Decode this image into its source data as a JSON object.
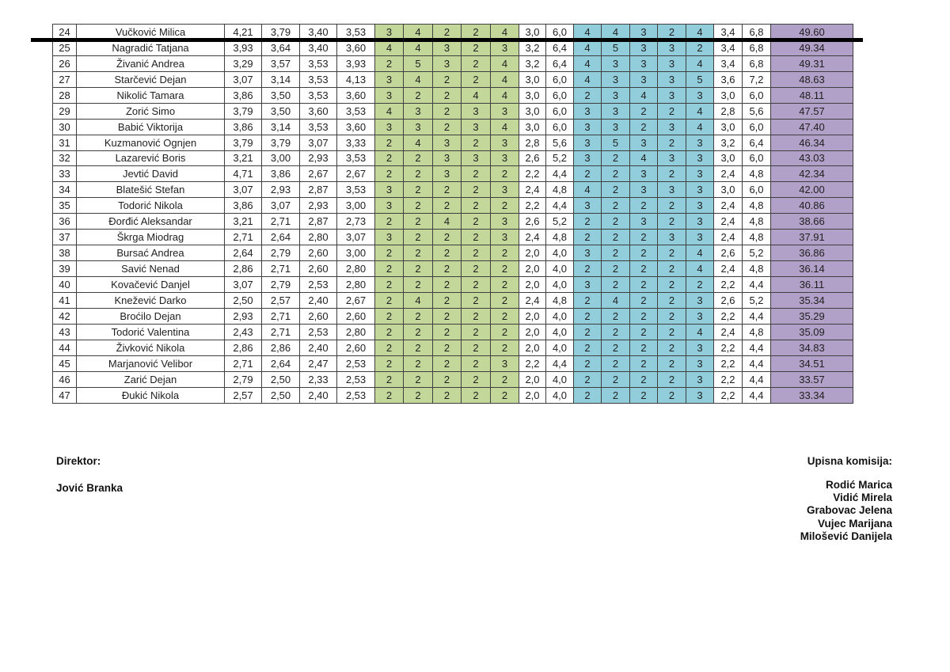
{
  "colors": {
    "green": "#C4D79B",
    "blue": "#92CDDC",
    "purple": "#B1A0C7"
  },
  "table": {
    "rows": [
      {
        "num": "24",
        "name": "Vučković Milica",
        "avg": [
          "4,21",
          "3,79",
          "3,40",
          "3,53"
        ],
        "pts1": [
          "3",
          "4",
          "2",
          "2",
          "4"
        ],
        "sub1": [
          "3,0",
          "6,0"
        ],
        "pts2": [
          "4",
          "4",
          "3",
          "2",
          "4"
        ],
        "sub2": [
          "3,4",
          "6,8"
        ],
        "total": "49.60"
      },
      {
        "num": "25",
        "name": "Nagradić Tatjana",
        "avg": [
          "3,93",
          "3,64",
          "3,40",
          "3,60"
        ],
        "pts1": [
          "4",
          "4",
          "3",
          "2",
          "3"
        ],
        "sub1": [
          "3,2",
          "6,4"
        ],
        "pts2": [
          "4",
          "5",
          "3",
          "3",
          "2"
        ],
        "sub2": [
          "3,4",
          "6,8"
        ],
        "total": "49.34"
      },
      {
        "num": "26",
        "name": "Živanić Andrea",
        "avg": [
          "3,29",
          "3,57",
          "3,53",
          "3,93"
        ],
        "pts1": [
          "2",
          "5",
          "3",
          "2",
          "4"
        ],
        "sub1": [
          "3,2",
          "6,4"
        ],
        "pts2": [
          "4",
          "3",
          "3",
          "3",
          "4"
        ],
        "sub2": [
          "3,4",
          "6,8"
        ],
        "total": "49.31"
      },
      {
        "num": "27",
        "name": "Starčević Dejan",
        "avg": [
          "3,07",
          "3,14",
          "3,53",
          "4,13"
        ],
        "pts1": [
          "3",
          "4",
          "2",
          "2",
          "4"
        ],
        "sub1": [
          "3,0",
          "6,0"
        ],
        "pts2": [
          "4",
          "3",
          "3",
          "3",
          "5"
        ],
        "sub2": [
          "3,6",
          "7,2"
        ],
        "total": "48.63"
      },
      {
        "num": "28",
        "name": "Nikolić Tamara",
        "avg": [
          "3,86",
          "3,50",
          "3,53",
          "3,60"
        ],
        "pts1": [
          "3",
          "2",
          "2",
          "4",
          "4"
        ],
        "sub1": [
          "3,0",
          "6,0"
        ],
        "pts2": [
          "2",
          "3",
          "4",
          "3",
          "3"
        ],
        "sub2": [
          "3,0",
          "6,0"
        ],
        "total": "48.11"
      },
      {
        "num": "29",
        "name": "Zorić Simo",
        "avg": [
          "3,79",
          "3,50",
          "3,60",
          "3,53"
        ],
        "pts1": [
          "4",
          "3",
          "2",
          "3",
          "3"
        ],
        "sub1": [
          "3,0",
          "6,0"
        ],
        "pts2": [
          "3",
          "3",
          "2",
          "2",
          "4"
        ],
        "sub2": [
          "2,8",
          "5,6"
        ],
        "total": "47.57"
      },
      {
        "num": "30",
        "name": "Babić Viktorija",
        "avg": [
          "3,86",
          "3,14",
          "3,53",
          "3,60"
        ],
        "pts1": [
          "3",
          "3",
          "2",
          "3",
          "4"
        ],
        "sub1": [
          "3,0",
          "6,0"
        ],
        "pts2": [
          "3",
          "3",
          "2",
          "3",
          "4"
        ],
        "sub2": [
          "3,0",
          "6,0"
        ],
        "total": "47.40"
      },
      {
        "num": "31",
        "name": "Kuzmanović Ognjen",
        "avg": [
          "3,79",
          "3,79",
          "3,07",
          "3,33"
        ],
        "pts1": [
          "2",
          "4",
          "3",
          "2",
          "3"
        ],
        "sub1": [
          "2,8",
          "5,6"
        ],
        "pts2": [
          "3",
          "5",
          "3",
          "2",
          "3"
        ],
        "sub2": [
          "3,2",
          "6,4"
        ],
        "total": "46.34"
      },
      {
        "num": "32",
        "name": "Lazarević Boris",
        "avg": [
          "3,21",
          "3,00",
          "2,93",
          "3,53"
        ],
        "pts1": [
          "2",
          "2",
          "3",
          "3",
          "3"
        ],
        "sub1": [
          "2,6",
          "5,2"
        ],
        "pts2": [
          "3",
          "2",
          "4",
          "3",
          "3"
        ],
        "sub2": [
          "3,0",
          "6,0"
        ],
        "total": "43.03"
      },
      {
        "num": "33",
        "name": "Jevtić David",
        "avg": [
          "4,71",
          "3,86",
          "2,67",
          "2,67"
        ],
        "pts1": [
          "2",
          "2",
          "3",
          "2",
          "2"
        ],
        "sub1": [
          "2,2",
          "4,4"
        ],
        "pts2": [
          "2",
          "2",
          "3",
          "2",
          "3"
        ],
        "sub2": [
          "2,4",
          "4,8"
        ],
        "total": "42.34"
      },
      {
        "num": "34",
        "name": "Blatešić Stefan",
        "avg": [
          "3,07",
          "2,93",
          "2,87",
          "3,53"
        ],
        "pts1": [
          "3",
          "2",
          "2",
          "2",
          "3"
        ],
        "sub1": [
          "2,4",
          "4,8"
        ],
        "pts2": [
          "4",
          "2",
          "3",
          "3",
          "3"
        ],
        "sub2": [
          "3,0",
          "6,0"
        ],
        "total": "42.00"
      },
      {
        "num": "35",
        "name": "Todorić Nikola",
        "avg": [
          "3,86",
          "3,07",
          "2,93",
          "3,00"
        ],
        "pts1": [
          "3",
          "2",
          "2",
          "2",
          "2"
        ],
        "sub1": [
          "2,2",
          "4,4"
        ],
        "pts2": [
          "3",
          "2",
          "2",
          "2",
          "3"
        ],
        "sub2": [
          "2,4",
          "4,8"
        ],
        "total": "40.86"
      },
      {
        "num": "36",
        "name": "Đorđić Aleksandar",
        "avg": [
          "3,21",
          "2,71",
          "2,87",
          "2,73"
        ],
        "pts1": [
          "2",
          "2",
          "4",
          "2",
          "3"
        ],
        "sub1": [
          "2,6",
          "5,2"
        ],
        "pts2": [
          "2",
          "2",
          "3",
          "2",
          "3"
        ],
        "sub2": [
          "2,4",
          "4,8"
        ],
        "total": "38.66"
      },
      {
        "num": "37",
        "name": "Škrga Miodrag",
        "avg": [
          "2,71",
          "2,64",
          "2,80",
          "3,07"
        ],
        "pts1": [
          "3",
          "2",
          "2",
          "2",
          "3"
        ],
        "sub1": [
          "2,4",
          "4,8"
        ],
        "pts2": [
          "2",
          "2",
          "2",
          "3",
          "3"
        ],
        "sub2": [
          "2,4",
          "4,8"
        ],
        "total": "37.91"
      },
      {
        "num": "38",
        "name": "Bursać Andrea",
        "avg": [
          "2,64",
          "2,79",
          "2,60",
          "3,00"
        ],
        "pts1": [
          "2",
          "2",
          "2",
          "2",
          "2"
        ],
        "sub1": [
          "2,0",
          "4,0"
        ],
        "pts2": [
          "3",
          "2",
          "2",
          "2",
          "4"
        ],
        "sub2": [
          "2,6",
          "5,2"
        ],
        "total": "36.86"
      },
      {
        "num": "39",
        "name": "Savić Nenad",
        "avg": [
          "2,86",
          "2,71",
          "2,60",
          "2,80"
        ],
        "pts1": [
          "2",
          "2",
          "2",
          "2",
          "2"
        ],
        "sub1": [
          "2,0",
          "4,0"
        ],
        "pts2": [
          "2",
          "2",
          "2",
          "2",
          "4"
        ],
        "sub2": [
          "2,4",
          "4,8"
        ],
        "total": "36.14"
      },
      {
        "num": "40",
        "name": "Kovačević Danjel",
        "avg": [
          "3,07",
          "2,79",
          "2,53",
          "2,80"
        ],
        "pts1": [
          "2",
          "2",
          "2",
          "2",
          "2"
        ],
        "sub1": [
          "2,0",
          "4,0"
        ],
        "pts2": [
          "3",
          "2",
          "2",
          "2",
          "2"
        ],
        "sub2": [
          "2,2",
          "4,4"
        ],
        "total": "36.11"
      },
      {
        "num": "41",
        "name": "Knežević Darko",
        "avg": [
          "2,50",
          "2,57",
          "2,40",
          "2,67"
        ],
        "pts1": [
          "2",
          "4",
          "2",
          "2",
          "2"
        ],
        "sub1": [
          "2,4",
          "4,8"
        ],
        "pts2": [
          "2",
          "4",
          "2",
          "2",
          "3"
        ],
        "sub2": [
          "2,6",
          "5,2"
        ],
        "total": "35.34"
      },
      {
        "num": "42",
        "name": "Broćilo Dejan",
        "avg": [
          "2,93",
          "2,71",
          "2,60",
          "2,60"
        ],
        "pts1": [
          "2",
          "2",
          "2",
          "2",
          "2"
        ],
        "sub1": [
          "2,0",
          "4,0"
        ],
        "pts2": [
          "2",
          "2",
          "2",
          "2",
          "3"
        ],
        "sub2": [
          "2,2",
          "4,4"
        ],
        "total": "35.29"
      },
      {
        "num": "43",
        "name": "Todorić Valentina",
        "avg": [
          "2,43",
          "2,71",
          "2,53",
          "2,80"
        ],
        "pts1": [
          "2",
          "2",
          "2",
          "2",
          "2"
        ],
        "sub1": [
          "2,0",
          "4,0"
        ],
        "pts2": [
          "2",
          "2",
          "2",
          "2",
          "4"
        ],
        "sub2": [
          "2,4",
          "4,8"
        ],
        "total": "35.09"
      },
      {
        "num": "44",
        "name": "Živković Nikola",
        "avg": [
          "2,86",
          "2,86",
          "2,40",
          "2,60"
        ],
        "pts1": [
          "2",
          "2",
          "2",
          "2",
          "2"
        ],
        "sub1": [
          "2,0",
          "4,0"
        ],
        "pts2": [
          "2",
          "2",
          "2",
          "2",
          "3"
        ],
        "sub2": [
          "2,2",
          "4,4"
        ],
        "total": "34.83"
      },
      {
        "num": "45",
        "name": "Marjanović Velibor",
        "avg": [
          "2,71",
          "2,64",
          "2,47",
          "2,53"
        ],
        "pts1": [
          "2",
          "2",
          "2",
          "2",
          "3"
        ],
        "sub1": [
          "2,2",
          "4,4"
        ],
        "pts2": [
          "2",
          "2",
          "2",
          "2",
          "3"
        ],
        "sub2": [
          "2,2",
          "4,4"
        ],
        "total": "34.51"
      },
      {
        "num": "46",
        "name": "Zarić Dejan",
        "avg": [
          "2,79",
          "2,50",
          "2,33",
          "2,53"
        ],
        "pts1": [
          "2",
          "2",
          "2",
          "2",
          "2"
        ],
        "sub1": [
          "2,0",
          "4,0"
        ],
        "pts2": [
          "2",
          "2",
          "2",
          "2",
          "3"
        ],
        "sub2": [
          "2,2",
          "4,4"
        ],
        "total": "33.57"
      },
      {
        "num": "47",
        "name": "Đukić Nikola",
        "avg": [
          "2,57",
          "2,50",
          "2,40",
          "2,53"
        ],
        "pts1": [
          "2",
          "2",
          "2",
          "2",
          "2"
        ],
        "sub1": [
          "2,0",
          "4,0"
        ],
        "pts2": [
          "2",
          "2",
          "2",
          "2",
          "3"
        ],
        "sub2": [
          "2,2",
          "4,4"
        ],
        "total": "33.34"
      }
    ]
  },
  "footer": {
    "left_title": "Direktor:",
    "left_name": "Jović Branka",
    "right_title": "Upisna komisija:",
    "right_names": [
      "Rodić Marica",
      "Vidić Mirela",
      "Grabovac Jelena",
      "Vujec Marijana",
      "Milošević Danijela"
    ]
  }
}
